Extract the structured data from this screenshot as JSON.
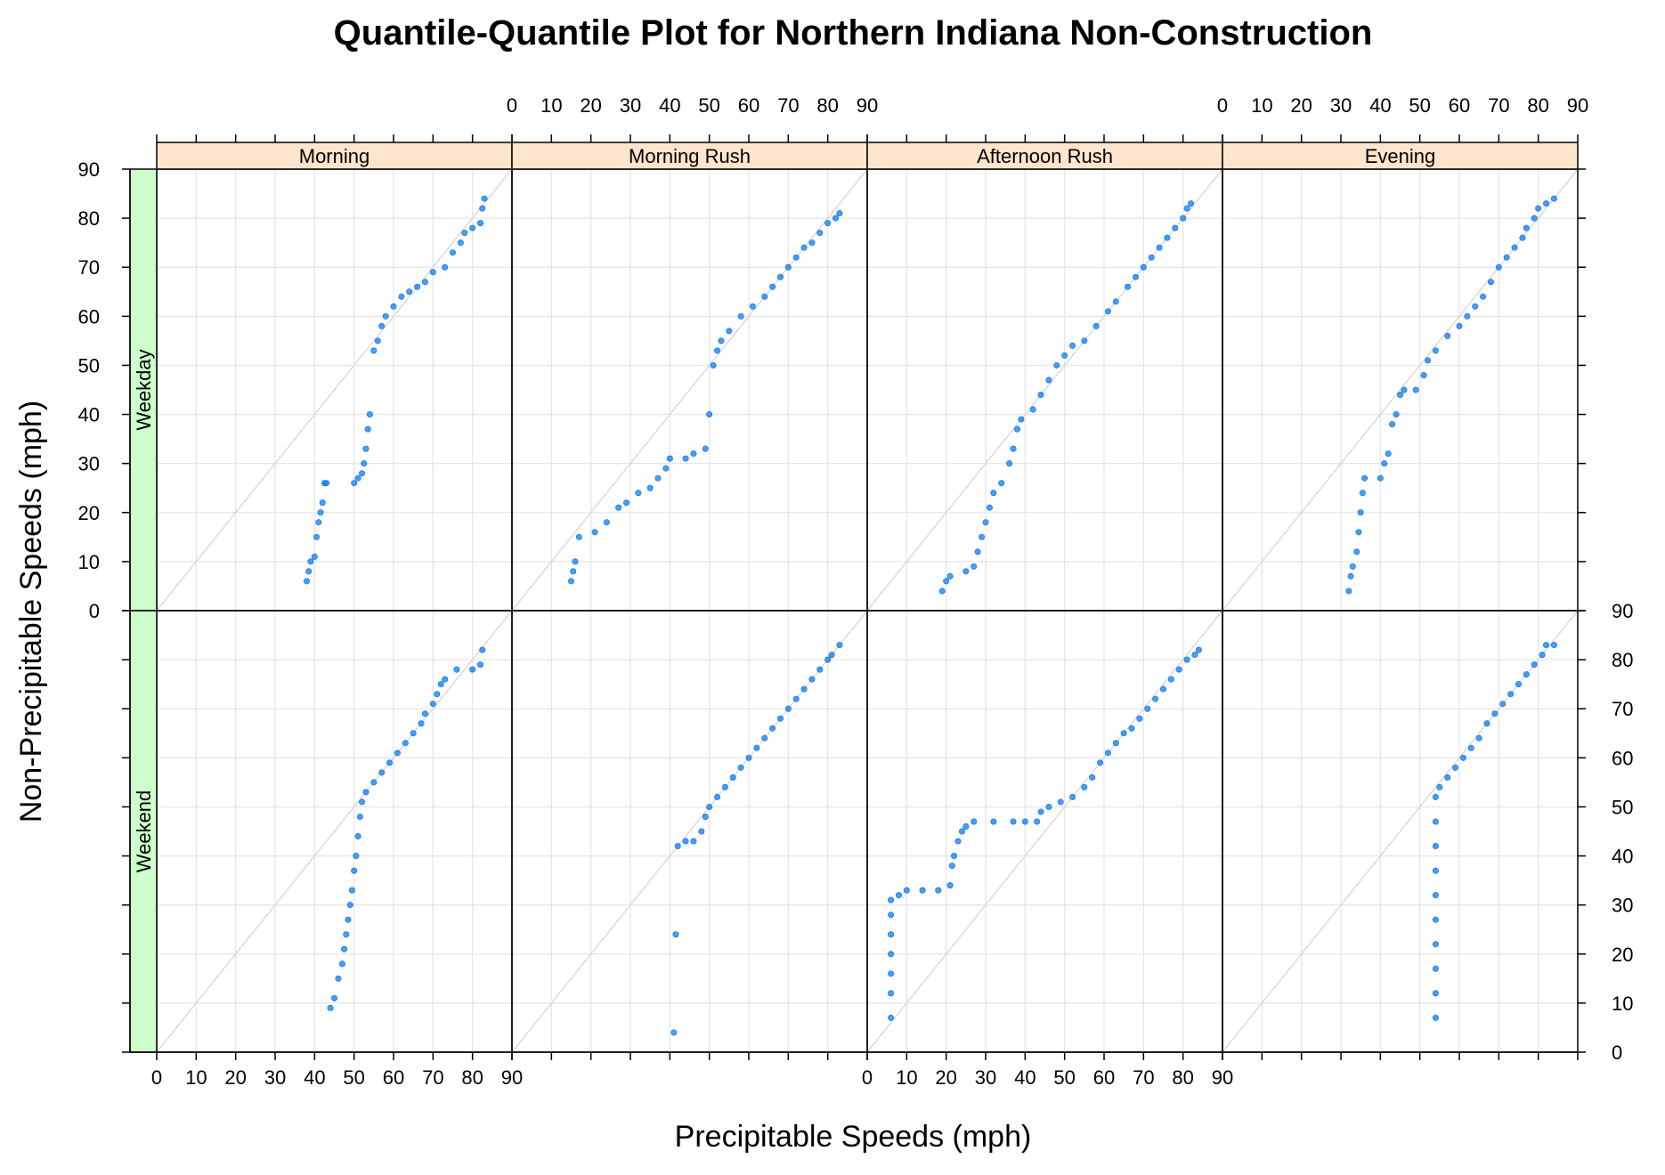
{
  "chart_data": {
    "type": "scatter",
    "title": "Quantile-Quantile Plot for Northern Indiana Non-Construction",
    "xlabel": "Precipitable Speeds (mph)",
    "ylabel": "Non-Precipitable Speeds (mph)",
    "xlim": [
      0,
      90
    ],
    "ylim": [
      0,
      90
    ],
    "ticks": [
      0,
      10,
      20,
      30,
      40,
      50,
      60,
      70,
      80,
      90
    ],
    "grid": true,
    "reference_line": "y = x",
    "columns": [
      "Morning",
      "Morning Rush",
      "Afternoon Rush",
      "Evening"
    ],
    "rows": [
      "Weekday",
      "Weekend"
    ],
    "colors": {
      "point": "#0080ff",
      "strip_column": "#ffe5cc",
      "strip_row": "#ccffcc",
      "grid": "#e6e6e6",
      "reference": "#d9d9d9"
    },
    "panels": [
      {
        "row": "Weekday",
        "column": "Morning",
        "points": [
          [
            38,
            6
          ],
          [
            38.5,
            8
          ],
          [
            39,
            10
          ],
          [
            40,
            11
          ],
          [
            40.5,
            15
          ],
          [
            41,
            18
          ],
          [
            41.5,
            20
          ],
          [
            42,
            22
          ],
          [
            42.5,
            26
          ],
          [
            43,
            26
          ],
          [
            50,
            26
          ],
          [
            51,
            27
          ],
          [
            52,
            28
          ],
          [
            52.5,
            30
          ],
          [
            53,
            33
          ],
          [
            53.5,
            37
          ],
          [
            54,
            40
          ],
          [
            55,
            53
          ],
          [
            56,
            55
          ],
          [
            57,
            58
          ],
          [
            58,
            60
          ],
          [
            60,
            62
          ],
          [
            62,
            64
          ],
          [
            64,
            65
          ],
          [
            66,
            66
          ],
          [
            68,
            67
          ],
          [
            70,
            69
          ],
          [
            73,
            70
          ],
          [
            75,
            73
          ],
          [
            77,
            75
          ],
          [
            78,
            77
          ],
          [
            80,
            78
          ],
          [
            82,
            79
          ],
          [
            82.5,
            82
          ],
          [
            83,
            84
          ]
        ]
      },
      {
        "row": "Weekday",
        "column": "Morning Rush",
        "points": [
          [
            15,
            6
          ],
          [
            15.5,
            8
          ],
          [
            16,
            10
          ],
          [
            17,
            15
          ],
          [
            21,
            16
          ],
          [
            24,
            18
          ],
          [
            27,
            21
          ],
          [
            29,
            22
          ],
          [
            32,
            24
          ],
          [
            35,
            25
          ],
          [
            37,
            27
          ],
          [
            39,
            29
          ],
          [
            40,
            31
          ],
          [
            44,
            31
          ],
          [
            46,
            32
          ],
          [
            49,
            33
          ],
          [
            50,
            40
          ],
          [
            51,
            50
          ],
          [
            52,
            53
          ],
          [
            53,
            55
          ],
          [
            55,
            57
          ],
          [
            58,
            60
          ],
          [
            61,
            62
          ],
          [
            64,
            64
          ],
          [
            66,
            66
          ],
          [
            68,
            68
          ],
          [
            70,
            70
          ],
          [
            72,
            72
          ],
          [
            74,
            74
          ],
          [
            76,
            75
          ],
          [
            78,
            77
          ],
          [
            80,
            79
          ],
          [
            82,
            80
          ],
          [
            83,
            81
          ]
        ]
      },
      {
        "row": "Weekday",
        "column": "Afternoon Rush",
        "points": [
          [
            19,
            4
          ],
          [
            20,
            6
          ],
          [
            21,
            7
          ],
          [
            25,
            8
          ],
          [
            27,
            9
          ],
          [
            28,
            12
          ],
          [
            29,
            15
          ],
          [
            30,
            18
          ],
          [
            31,
            21
          ],
          [
            32,
            24
          ],
          [
            34,
            26
          ],
          [
            36,
            30
          ],
          [
            37,
            33
          ],
          [
            38,
            37
          ],
          [
            39,
            39
          ],
          [
            42,
            41
          ],
          [
            44,
            44
          ],
          [
            46,
            47
          ],
          [
            48,
            50
          ],
          [
            50,
            52
          ],
          [
            52,
            54
          ],
          [
            55,
            55
          ],
          [
            58,
            58
          ],
          [
            61,
            61
          ],
          [
            63,
            63
          ],
          [
            66,
            66
          ],
          [
            68,
            68
          ],
          [
            70,
            70
          ],
          [
            72,
            72
          ],
          [
            74,
            74
          ],
          [
            76,
            76
          ],
          [
            78,
            78
          ],
          [
            80,
            80
          ],
          [
            81,
            82
          ],
          [
            82,
            83
          ]
        ]
      },
      {
        "row": "Weekday",
        "column": "Evening",
        "points": [
          [
            32,
            4
          ],
          [
            32.5,
            7
          ],
          [
            33,
            9
          ],
          [
            34,
            12
          ],
          [
            34.5,
            16
          ],
          [
            35,
            20
          ],
          [
            35.5,
            24
          ],
          [
            36,
            27
          ],
          [
            40,
            27
          ],
          [
            41,
            30
          ],
          [
            42,
            32
          ],
          [
            43,
            38
          ],
          [
            44,
            40
          ],
          [
            45,
            44
          ],
          [
            46,
            45
          ],
          [
            49,
            45
          ],
          [
            51,
            48
          ],
          [
            52,
            51
          ],
          [
            54,
            53
          ],
          [
            57,
            56
          ],
          [
            60,
            58
          ],
          [
            62,
            60
          ],
          [
            64,
            62
          ],
          [
            66,
            64
          ],
          [
            68,
            67
          ],
          [
            70,
            70
          ],
          [
            72,
            72
          ],
          [
            74,
            74
          ],
          [
            76,
            76
          ],
          [
            77,
            78
          ],
          [
            79,
            80
          ],
          [
            80,
            82
          ],
          [
            82,
            83
          ],
          [
            84,
            84
          ]
        ]
      },
      {
        "row": "Weekend",
        "column": "Morning",
        "points": [
          [
            44,
            9
          ],
          [
            45,
            11
          ],
          [
            46,
            15
          ],
          [
            47,
            18
          ],
          [
            47.5,
            21
          ],
          [
            48,
            24
          ],
          [
            48.5,
            27
          ],
          [
            49,
            30
          ],
          [
            49.5,
            33
          ],
          [
            50,
            37
          ],
          [
            50.5,
            40
          ],
          [
            51,
            44
          ],
          [
            51.5,
            48
          ],
          [
            52,
            51
          ],
          [
            53,
            53
          ],
          [
            55,
            55
          ],
          [
            57,
            57
          ],
          [
            59,
            59
          ],
          [
            61,
            61
          ],
          [
            63,
            63
          ],
          [
            65,
            65
          ],
          [
            67,
            67
          ],
          [
            68,
            69
          ],
          [
            70,
            71
          ],
          [
            71,
            73
          ],
          [
            72,
            75
          ],
          [
            73,
            76
          ],
          [
            76,
            78
          ],
          [
            80,
            78
          ],
          [
            82,
            79
          ],
          [
            82.5,
            82
          ]
        ]
      },
      {
        "row": "Weekend",
        "column": "Morning Rush",
        "points": [
          [
            41,
            4
          ],
          [
            41.5,
            24
          ],
          [
            42,
            42
          ],
          [
            44,
            43
          ],
          [
            46,
            43
          ],
          [
            48,
            45
          ],
          [
            49,
            48
          ],
          [
            50,
            50
          ],
          [
            52,
            52
          ],
          [
            54,
            54
          ],
          [
            56,
            56
          ],
          [
            58,
            58
          ],
          [
            60,
            60
          ],
          [
            62,
            62
          ],
          [
            64,
            64
          ],
          [
            66,
            66
          ],
          [
            68,
            68
          ],
          [
            70,
            70
          ],
          [
            72,
            72
          ],
          [
            74,
            74
          ],
          [
            76,
            76
          ],
          [
            78,
            78
          ],
          [
            80,
            80
          ],
          [
            81,
            81
          ],
          [
            83,
            83
          ]
        ]
      },
      {
        "row": "Weekend",
        "column": "Afternoon Rush",
        "points": [
          [
            6,
            7
          ],
          [
            6,
            12
          ],
          [
            6,
            16
          ],
          [
            6,
            20
          ],
          [
            6,
            24
          ],
          [
            6,
            28
          ],
          [
            6,
            31
          ],
          [
            8,
            32
          ],
          [
            10,
            33
          ],
          [
            14,
            33
          ],
          [
            18,
            33
          ],
          [
            21,
            34
          ],
          [
            21.5,
            38
          ],
          [
            22,
            40
          ],
          [
            23,
            43
          ],
          [
            24,
            45
          ],
          [
            25,
            46
          ],
          [
            27,
            47
          ],
          [
            32,
            47
          ],
          [
            37,
            47
          ],
          [
            40,
            47
          ],
          [
            43,
            47
          ],
          [
            44,
            49
          ],
          [
            46,
            50
          ],
          [
            49,
            51
          ],
          [
            52,
            52
          ],
          [
            55,
            54
          ],
          [
            57,
            56
          ],
          [
            59,
            59
          ],
          [
            61,
            61
          ],
          [
            63,
            63
          ],
          [
            65,
            65
          ],
          [
            67,
            66
          ],
          [
            69,
            68
          ],
          [
            71,
            70
          ],
          [
            73,
            72
          ],
          [
            75,
            74
          ],
          [
            77,
            76
          ],
          [
            79,
            78
          ],
          [
            81,
            80
          ],
          [
            83,
            81
          ],
          [
            84,
            82
          ]
        ]
      },
      {
        "row": "Weekend",
        "column": "Evening",
        "points": [
          [
            54,
            7
          ],
          [
            54,
            12
          ],
          [
            54,
            17
          ],
          [
            54,
            22
          ],
          [
            54,
            27
          ],
          [
            54,
            32
          ],
          [
            54,
            37
          ],
          [
            54,
            42
          ],
          [
            54,
            47
          ],
          [
            54,
            52
          ],
          [
            55,
            54
          ],
          [
            57,
            56
          ],
          [
            59,
            58
          ],
          [
            61,
            60
          ],
          [
            63,
            62
          ],
          [
            65,
            64
          ],
          [
            67,
            67
          ],
          [
            69,
            69
          ],
          [
            71,
            71
          ],
          [
            73,
            73
          ],
          [
            75,
            75
          ],
          [
            77,
            77
          ],
          [
            79,
            79
          ],
          [
            81,
            81
          ],
          [
            82,
            83
          ],
          [
            84,
            83
          ]
        ]
      }
    ]
  }
}
